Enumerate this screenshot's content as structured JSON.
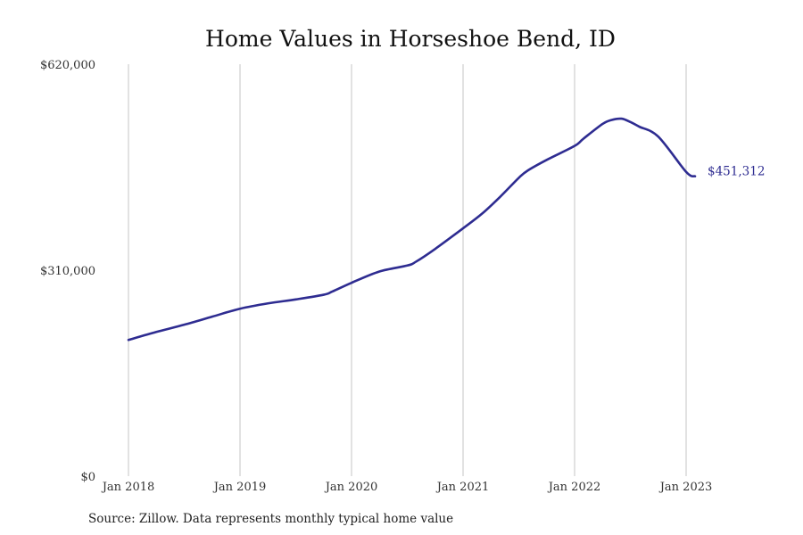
{
  "chart_data": {
    "type": "line",
    "title": "Home Values in Horseshoe Bend, ID",
    "xlabel": "",
    "ylabel": "",
    "ylim": [
      0,
      620000
    ],
    "y_ticks": [
      {
        "value": 0,
        "label": "$0"
      },
      {
        "value": 310000,
        "label": "$310,000"
      },
      {
        "value": 620000,
        "label": "$620,000"
      }
    ],
    "x_ticks": [
      {
        "value": 2018.0,
        "label": "Jan 2018"
      },
      {
        "value": 2019.0,
        "label": "Jan 2019"
      },
      {
        "value": 2020.0,
        "label": "Jan 2020"
      },
      {
        "value": 2021.0,
        "label": "Jan 2021"
      },
      {
        "value": 2022.0,
        "label": "Jan 2022"
      },
      {
        "value": 2023.0,
        "label": "Jan 2023"
      }
    ],
    "xlim": [
      2018.0,
      2023.1
    ],
    "grid": {
      "vertical": true,
      "horizontal": false
    },
    "line_color": "#2e2c91",
    "end_label": "$451,312",
    "series": [
      {
        "x": [
          2018.0,
          2018.25,
          2018.5,
          2018.75,
          2019.0,
          2019.25,
          2019.5,
          2019.75,
          2019.83,
          2020.0,
          2020.25,
          2020.5,
          2020.58,
          2020.75,
          2021.0,
          2021.17,
          2021.33,
          2021.5,
          2021.58,
          2021.75,
          2022.0,
          2022.08,
          2022.25,
          2022.33,
          2022.42,
          2022.5,
          2022.58,
          2022.75,
          2023.0,
          2023.08
        ],
        "values": [
          205000,
          217000,
          228000,
          240000,
          252000,
          260000,
          266000,
          273000,
          278000,
          291000,
          308000,
          317000,
          323000,
          342000,
          373000,
          395000,
          420000,
          449000,
          460000,
          476000,
          497000,
          508000,
          530000,
          536000,
          538000,
          533000,
          526000,
          511000,
          458000,
          451312
        ]
      }
    ]
  },
  "footer": {
    "source": "Source: Zillow. Data represents monthly typical home value"
  }
}
